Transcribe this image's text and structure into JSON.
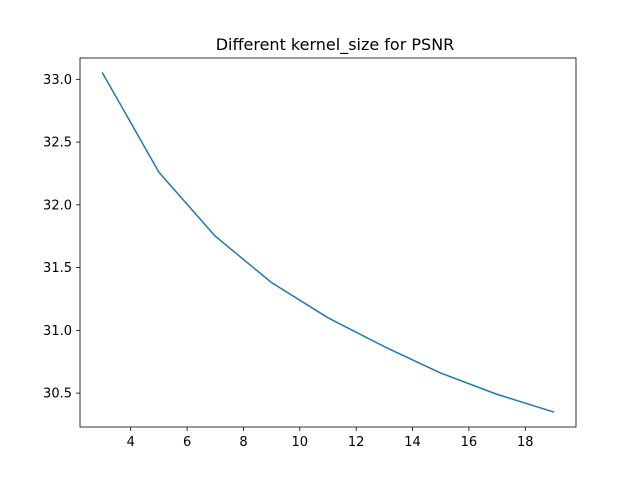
{
  "chart_data": {
    "type": "line",
    "title": "Different kernel_size for PSNR",
    "xlabel": "",
    "ylabel": "",
    "xlim": [
      2.2,
      19.8
    ],
    "ylim": [
      30.23,
      33.17
    ],
    "grid": false,
    "x_ticks": [
      4,
      6,
      8,
      10,
      12,
      14,
      16,
      18
    ],
    "y_ticks": [
      30.5,
      31.0,
      31.5,
      32.0,
      32.5,
      33.0
    ],
    "series": [
      {
        "color": "#1f77b4",
        "x": [
          3,
          5,
          7,
          9,
          11,
          13,
          15,
          17,
          19
        ],
        "y": [
          33.05,
          32.26,
          31.75,
          31.38,
          31.1,
          30.87,
          30.66,
          30.49,
          30.35
        ]
      }
    ]
  }
}
